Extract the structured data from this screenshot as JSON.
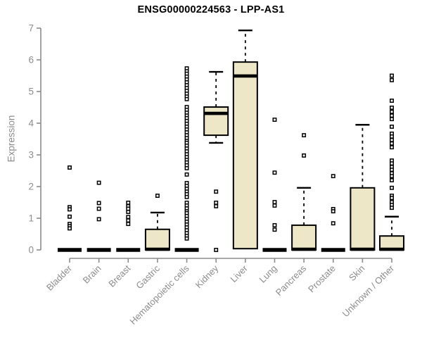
{
  "chart_data": {
    "type": "boxplot",
    "title": "ENSG00000224563 - LPP-AS1",
    "ylabel": "Expression",
    "ylim": [
      0,
      7
    ],
    "yticks": [
      0,
      1,
      2,
      3,
      4,
      5,
      6,
      7
    ],
    "grid": false,
    "legend": "none",
    "colors": {
      "box_fill": "#EDE7C7",
      "box_stroke": "#000000",
      "median": "#000000",
      "outlier": "#000000",
      "axis": "#8c8c8c",
      "title": "#000000",
      "background": "#ffffff"
    },
    "categories": [
      "Bladder",
      "Brain",
      "Breast",
      "Gastric",
      "Hematopoietic cells",
      "Kidney",
      "Liver",
      "Lung",
      "Pancreas",
      "Prostate",
      "Skin",
      "Unknown / Other"
    ],
    "series": [
      {
        "category": "Bladder",
        "q1": 0,
        "median": 0,
        "q3": 0,
        "whisker_low": 0,
        "whisker_high": 0,
        "outliers": [
          2.6,
          1.35,
          1.28,
          1.05,
          0.82,
          0.75,
          0.68
        ]
      },
      {
        "category": "Brain",
        "q1": 0,
        "median": 0,
        "q3": 0,
        "whisker_low": 0,
        "whisker_high": 0,
        "outliers": [
          2.12,
          1.48,
          1.3,
          0.97
        ]
      },
      {
        "category": "Breast",
        "q1": 0,
        "median": 0,
        "q3": 0,
        "whisker_low": 0,
        "whisker_high": 0,
        "outliers": [
          1.49,
          1.38,
          1.3,
          1.2,
          1.04,
          0.93,
          0.82
        ]
      },
      {
        "category": "Gastric",
        "q1": 0,
        "median": 0.02,
        "q3": 0.65,
        "whisker_low": 0,
        "whisker_high": 1.18,
        "outliers": [
          1.71
        ]
      },
      {
        "category": "Hematopoietic cells",
        "q1": 0,
        "median": 0,
        "q3": 0,
        "whisker_low": 0,
        "whisker_high": 0,
        "outliers": [
          5.73,
          5.64,
          5.56,
          5.47,
          5.38,
          5.29,
          5.2,
          5.11,
          5.02,
          4.93,
          4.84,
          4.76,
          4.51,
          4.42,
          4.33,
          4.24,
          4.16,
          4.07,
          3.98,
          3.89,
          3.8,
          3.71,
          3.62,
          3.53,
          3.44,
          3.38,
          3.29,
          3.2,
          3.11,
          3.02,
          2.93,
          2.84,
          2.76,
          2.67,
          2.58,
          2.38,
          2.11,
          2.02,
          1.93,
          1.84,
          1.76,
          1.67,
          1.49,
          1.4,
          1.31,
          1.22,
          1.16,
          1.07,
          0.98,
          0.89,
          0.8,
          0.71,
          0.62,
          0.53,
          0.44,
          0.36
        ]
      },
      {
        "category": "Kidney",
        "q1": 3.62,
        "median": 4.31,
        "q3": 4.51,
        "whisker_low": 3.38,
        "whisker_high": 5.62,
        "outliers": [
          1.84,
          1.49,
          1.38,
          0
        ]
      },
      {
        "category": "Liver",
        "q1": 0.04,
        "median": 5.49,
        "q3": 5.93,
        "whisker_low": 0.04,
        "whisker_high": 6.93,
        "outliers": []
      },
      {
        "category": "Lung",
        "q1": 0,
        "median": 0,
        "q3": 0,
        "whisker_low": 0,
        "whisker_high": 0,
        "outliers": [
          4.11,
          2.44,
          1.51,
          1.4,
          0.78,
          0.64
        ]
      },
      {
        "category": "Pancreas",
        "q1": 0,
        "median": 0.02,
        "q3": 0.78,
        "whisker_low": 0,
        "whisker_high": 1.96,
        "outliers": [
          3.62,
          2.98
        ]
      },
      {
        "category": "Prostate",
        "q1": 0,
        "median": 0,
        "q3": 0,
        "whisker_low": 0,
        "whisker_high": 0,
        "outliers": [
          2.33,
          1.29,
          1.22,
          0.84
        ]
      },
      {
        "category": "Skin",
        "q1": 0,
        "median": 0.02,
        "q3": 1.96,
        "whisker_low": 0,
        "whisker_high": 3.95,
        "outliers": []
      },
      {
        "category": "Unknown / Other",
        "q1": 0,
        "median": 0.02,
        "q3": 0.44,
        "whisker_low": 0,
        "whisker_high": 1.05,
        "outliers": [
          5.5,
          5.36,
          4.71,
          4.49,
          4.36,
          4.24,
          4.13,
          3.89,
          3.67,
          3.58,
          3.47,
          3.36,
          3.24,
          2.82,
          2.73,
          2.62,
          2.53,
          2.42,
          2.33,
          2.2,
          1.96,
          1.71,
          1.64,
          1.51,
          1.42,
          1.33
        ]
      }
    ]
  }
}
